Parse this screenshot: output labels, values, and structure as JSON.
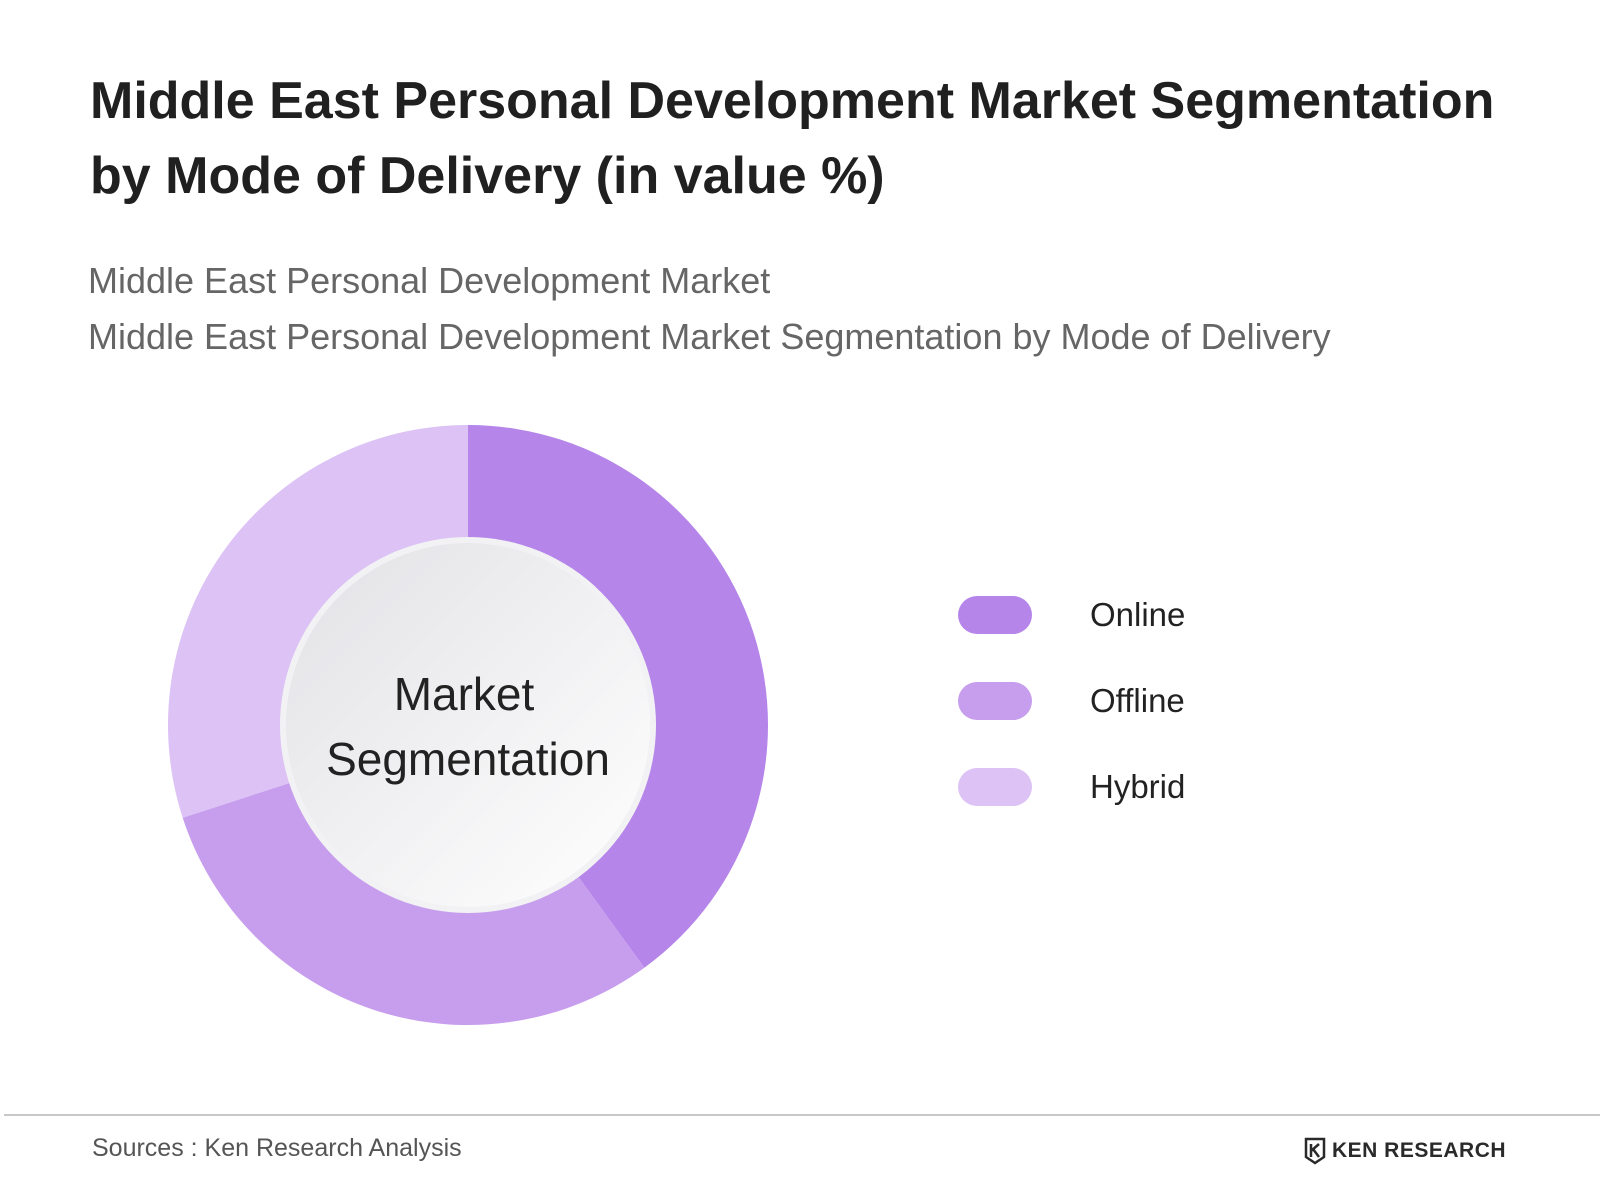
{
  "title": "Middle East Personal Development Market Segmentation by Mode of Delivery (in value %)",
  "subtitle_1": "Middle East Personal Development Market",
  "subtitle_2": "Middle East Personal Development Market Segmentation by Mode of Delivery",
  "center_label": [
    "Market",
    "Segmentation"
  ],
  "source": "Sources : Ken Research Analysis",
  "brand": "KEN RESEARCH",
  "chart_data": {
    "type": "pie",
    "variant": "donut",
    "start": "12 o'clock, clockwise",
    "legend_position": "right",
    "categories": [
      "Online",
      "Offline",
      "Hybrid"
    ],
    "values": [
      40,
      30,
      30
    ],
    "unit": "%",
    "colors": [
      "#b585ea",
      "#c79ded",
      "#dcc2f5"
    ]
  }
}
